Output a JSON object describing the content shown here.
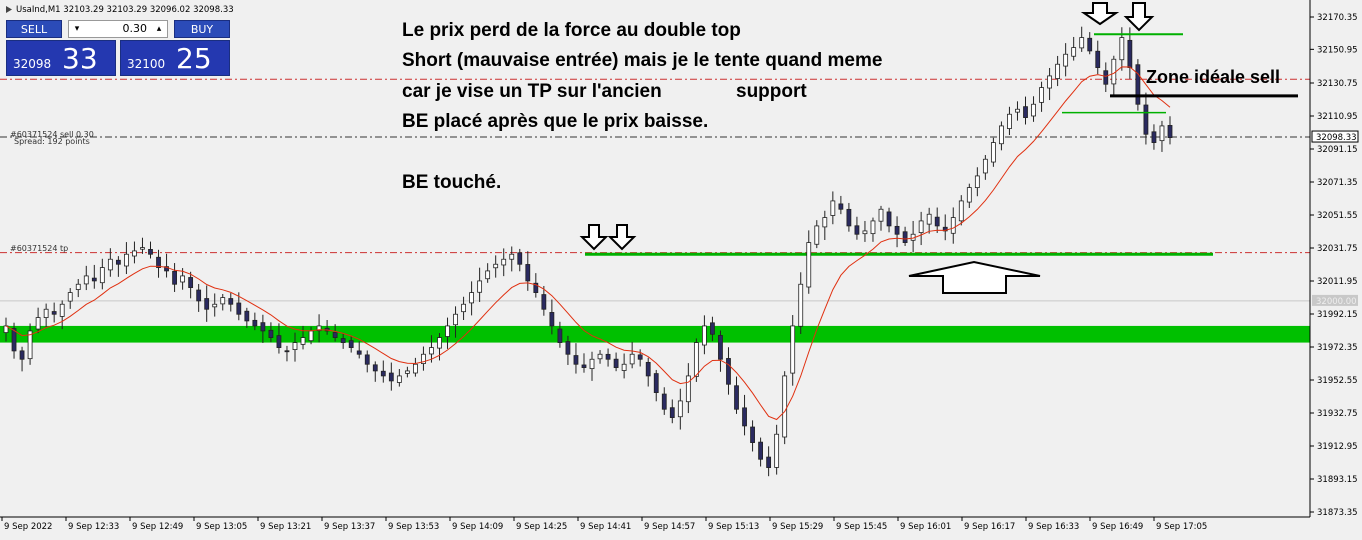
{
  "header": {
    "symbol_line": "UsaInd,M1  32103.29 32103.29 32096.02 32098.33"
  },
  "trade_panel": {
    "sell_label": "SELL",
    "buy_label": "BUY",
    "lot": "0.30",
    "sell_price_small": "32098",
    "sell_price_big": "33",
    "buy_price_small": "32100",
    "buy_price_big": "25",
    "minus": "▾",
    "plus": "▴"
  },
  "annotations": {
    "line1": "Le prix perd de la force au double top",
    "line2": "Short (mauvaise entrée) mais je le tente quand meme",
    "line3a": "car je vise un TP sur l'ancien",
    "line3b": "support",
    "line4": "BE placé après que le prix baisse.",
    "line5": "BE touché.",
    "zone": "Zone idéale sell"
  },
  "order_labels": {
    "sell": "#60371524 sell 0.30",
    "spread": "Spread: 192 points",
    "tp": "#60371524 tp"
  },
  "colors": {
    "bull": "#ffffff",
    "bear": "#2a2a60",
    "ma": "#e03010",
    "zone": "#00c000",
    "order": "#cc3030"
  },
  "chart_data": {
    "type": "candlestick",
    "y_ticks": [
      "32170.35",
      "32150.95",
      "32130.75",
      "32110.95",
      "32091.15",
      "32071.35",
      "32051.55",
      "32031.75",
      "32011.95",
      "31992.15",
      "31972.35",
      "31952.55",
      "31932.75",
      "31912.95",
      "31893.15",
      "31873.35"
    ],
    "ylim": [
      31873.35,
      32170.35
    ],
    "x_ticks": [
      "9 Sep 2022",
      "9 Sep 12:33",
      "9 Sep 12:49",
      "9 Sep 13:05",
      "9 Sep 13:21",
      "9 Sep 13:37",
      "9 Sep 13:53",
      "9 Sep 14:09",
      "9 Sep 14:25",
      "9 Sep 14:41",
      "9 Sep 14:57",
      "9 Sep 15:13",
      "9 Sep 15:29",
      "9 Sep 15:45",
      "9 Sep 16:01",
      "9 Sep 16:17",
      "9 Sep 16:33",
      "9 Sep 16:49",
      "9 Sep 17:05"
    ],
    "current_price": "32098.33",
    "ref_price": "32000.00",
    "levels": {
      "sell_entry": 32133,
      "tp": 32029,
      "be": 32098.33,
      "ref": 32000,
      "support_zone": [
        31975,
        31985
      ],
      "support_line": 32028,
      "top_line": 32160,
      "mid_line": 32113,
      "zone_line": 32123
    },
    "closes": [
      31985,
      31970,
      31965,
      31982,
      31990,
      31995,
      31992,
      31998,
      32005,
      32010,
      32015,
      32012,
      32020,
      32025,
      32022,
      32028,
      32030,
      32032,
      32028,
      32020,
      32018,
      32010,
      32015,
      32008,
      32000,
      31995,
      31998,
      32002,
      31998,
      31992,
      31988,
      31985,
      31982,
      31978,
      31972,
      31970,
      31975,
      31978,
      31982,
      31985,
      31982,
      31978,
      31975,
      31972,
      31968,
      31962,
      31958,
      31955,
      31952,
      31955,
      31958,
      31962,
      31968,
      31972,
      31978,
      31985,
      31992,
      31998,
      32005,
      32012,
      32018,
      32022,
      32025,
      32028,
      32022,
      32012,
      32005,
      31995,
      31985,
      31975,
      31968,
      31962,
      31960,
      31965,
      31968,
      31965,
      31960,
      31962,
      31968,
      31965,
      31955,
      31945,
      31935,
      31930,
      31940,
      31955,
      31975,
      31985,
      31980,
      31965,
      31950,
      31935,
      31925,
      31915,
      31905,
      31900,
      31920,
      31955,
      31985,
      32010,
      32035,
      32045,
      32050,
      32060,
      32055,
      32045,
      32040,
      32042,
      32048,
      32055,
      32045,
      32040,
      32035,
      32040,
      32048,
      32052,
      32045,
      32042,
      32050,
      32060,
      32068,
      32075,
      32085,
      32095,
      32105,
      32112,
      32115,
      32110,
      32118,
      32128,
      32135,
      32142,
      32148,
      32152,
      32158,
      32150,
      32140,
      32130,
      32145,
      32158,
      32140,
      32118,
      32100,
      32095,
      32105,
      32098
    ]
  }
}
